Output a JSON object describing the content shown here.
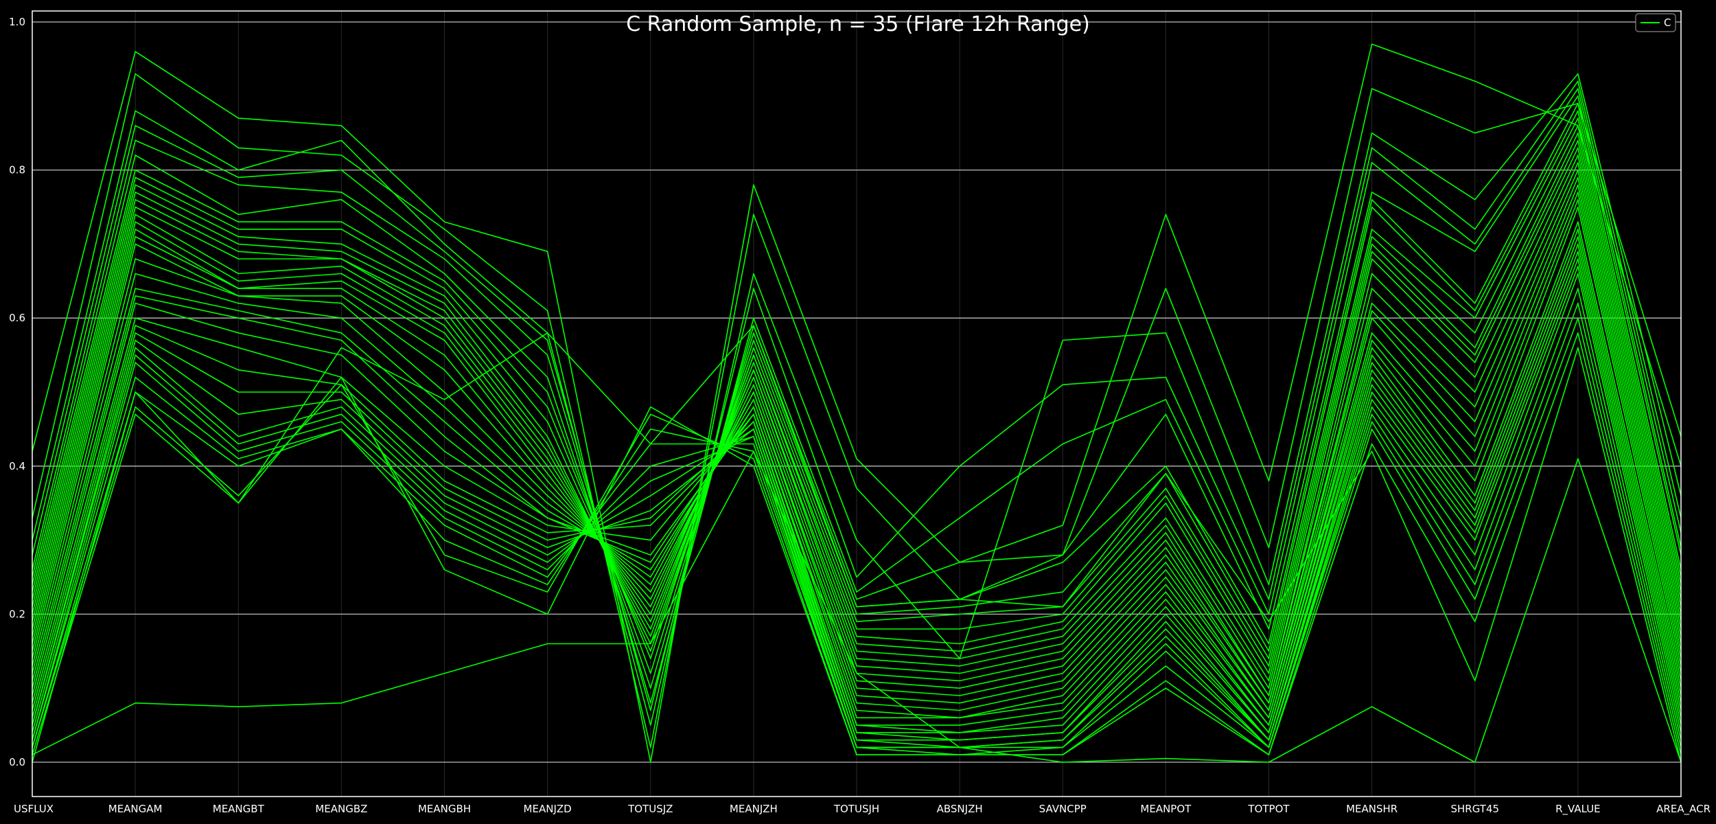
{
  "chart_data": {
    "type": "line",
    "subtype": "parallel-coordinates",
    "title": "C Random Sample, n = 35 (Flare 12h Range)",
    "xlabel": "",
    "ylabel": "",
    "categories": [
      "USFLUX",
      "MEANGAM",
      "MEANGBT",
      "MEANGBZ",
      "MEANGBH",
      "MEANJZD",
      "TOTUSJZ",
      "MEANJZH",
      "TOTUSJH",
      "ABSNJZH",
      "SAVNCPP",
      "MEANPOT",
      "TOTPOT",
      "MEANSHR",
      "SHRGT45",
      "R_VALUE",
      "AREA_ACR"
    ],
    "ylim": [
      0.0,
      1.0
    ],
    "yticks": [
      "0.0",
      "0.2",
      "0.4",
      "0.6",
      "0.8",
      "1.0"
    ],
    "grid": "horizontal",
    "legend_position": "top-right",
    "series_color": "#00ff00",
    "legend": [
      {
        "label": "C",
        "color": "#00ff00"
      }
    ],
    "series": [
      {
        "values": [
          0.01,
          0.08,
          0.075,
          0.08,
          0.12,
          0.16,
          0.16,
          0.42,
          0.12,
          0.02,
          0.0,
          0.005,
          0.0,
          0.075,
          0.0,
          0.41,
          0.0
        ]
      },
      {
        "values": [
          0.42,
          0.96,
          0.87,
          0.86,
          0.73,
          0.69,
          0.0,
          0.78,
          0.41,
          0.27,
          0.32,
          0.74,
          0.38,
          0.97,
          0.92,
          0.86,
          0.4
        ]
      },
      {
        "values": [
          0.33,
          0.93,
          0.83,
          0.82,
          0.72,
          0.61,
          0.02,
          0.74,
          0.37,
          0.22,
          0.28,
          0.64,
          0.29,
          0.91,
          0.85,
          0.89,
          0.44
        ]
      },
      {
        "values": [
          0.3,
          0.88,
          0.8,
          0.84,
          0.7,
          0.58,
          0.05,
          0.66,
          0.3,
          0.14,
          0.57,
          0.58,
          0.24,
          0.85,
          0.76,
          0.93,
          0.36
        ]
      },
      {
        "values": [
          0.28,
          0.86,
          0.79,
          0.8,
          0.69,
          0.57,
          0.07,
          0.64,
          0.25,
          0.4,
          0.51,
          0.52,
          0.22,
          0.83,
          0.72,
          0.92,
          0.33
        ]
      },
      {
        "values": [
          0.26,
          0.84,
          0.78,
          0.77,
          0.68,
          0.55,
          0.08,
          0.6,
          0.23,
          0.33,
          0.43,
          0.49,
          0.2,
          0.81,
          0.7,
          0.91,
          0.31
        ]
      },
      {
        "values": [
          0.25,
          0.82,
          0.74,
          0.76,
          0.66,
          0.52,
          0.1,
          0.59,
          0.22,
          0.27,
          0.28,
          0.47,
          0.18,
          0.77,
          0.69,
          0.9,
          0.29
        ]
      },
      {
        "values": [
          0.24,
          0.8,
          0.73,
          0.73,
          0.65,
          0.5,
          0.12,
          0.58,
          0.21,
          0.22,
          0.27,
          0.4,
          0.16,
          0.76,
          0.62,
          0.89,
          0.28
        ]
      },
      {
        "values": [
          0.23,
          0.79,
          0.72,
          0.72,
          0.64,
          0.48,
          0.14,
          0.57,
          0.2,
          0.21,
          0.23,
          0.39,
          0.15,
          0.75,
          0.61,
          0.88,
          0.26
        ]
      },
      {
        "values": [
          0.22,
          0.78,
          0.71,
          0.7,
          0.63,
          0.46,
          0.15,
          0.56,
          0.19,
          0.2,
          0.21,
          0.37,
          0.14,
          0.72,
          0.6,
          0.87,
          0.25
        ]
      },
      {
        "values": [
          0.21,
          0.77,
          0.7,
          0.69,
          0.62,
          0.44,
          0.16,
          0.55,
          0.18,
          0.18,
          0.2,
          0.36,
          0.13,
          0.71,
          0.58,
          0.86,
          0.24
        ]
      },
      {
        "values": [
          0.2,
          0.76,
          0.69,
          0.68,
          0.61,
          0.43,
          0.17,
          0.55,
          0.17,
          0.16,
          0.19,
          0.35,
          0.12,
          0.7,
          0.56,
          0.85,
          0.23
        ]
      },
      {
        "values": [
          0.19,
          0.75,
          0.68,
          0.68,
          0.6,
          0.42,
          0.18,
          0.54,
          0.16,
          0.15,
          0.18,
          0.33,
          0.11,
          0.69,
          0.55,
          0.84,
          0.22
        ]
      },
      {
        "values": [
          0.18,
          0.74,
          0.66,
          0.67,
          0.59,
          0.41,
          0.19,
          0.53,
          0.15,
          0.14,
          0.17,
          0.32,
          0.1,
          0.68,
          0.54,
          0.83,
          0.21
        ]
      },
      {
        "values": [
          0.17,
          0.73,
          0.65,
          0.66,
          0.58,
          0.4,
          0.2,
          0.53,
          0.14,
          0.13,
          0.16,
          0.31,
          0.09,
          0.66,
          0.52,
          0.82,
          0.2
        ]
      },
      {
        "values": [
          0.16,
          0.72,
          0.64,
          0.65,
          0.57,
          0.39,
          0.21,
          0.52,
          0.13,
          0.12,
          0.15,
          0.3,
          0.09,
          0.64,
          0.5,
          0.81,
          0.19
        ]
      },
      {
        "values": [
          0.15,
          0.71,
          0.64,
          0.64,
          0.55,
          0.38,
          0.22,
          0.51,
          0.12,
          0.11,
          0.14,
          0.29,
          0.08,
          0.62,
          0.48,
          0.8,
          0.18
        ]
      },
      {
        "values": [
          0.14,
          0.7,
          0.63,
          0.63,
          0.53,
          0.37,
          0.23,
          0.5,
          0.11,
          0.1,
          0.13,
          0.28,
          0.08,
          0.61,
          0.46,
          0.79,
          0.17
        ]
      },
      {
        "values": [
          0.13,
          0.68,
          0.63,
          0.62,
          0.5,
          0.36,
          0.24,
          0.5,
          0.1,
          0.09,
          0.12,
          0.27,
          0.07,
          0.6,
          0.44,
          0.78,
          0.16
        ]
      },
      {
        "values": [
          0.12,
          0.66,
          0.62,
          0.6,
          0.48,
          0.35,
          0.25,
          0.49,
          0.09,
          0.08,
          0.11,
          0.26,
          0.07,
          0.58,
          0.42,
          0.77,
          0.15
        ]
      },
      {
        "values": [
          0.11,
          0.64,
          0.61,
          0.58,
          0.46,
          0.34,
          0.26,
          0.48,
          0.08,
          0.07,
          0.1,
          0.25,
          0.06,
          0.57,
          0.4,
          0.76,
          0.14
        ]
      },
      {
        "values": [
          0.1,
          0.63,
          0.6,
          0.57,
          0.44,
          0.33,
          0.27,
          0.48,
          0.07,
          0.06,
          0.09,
          0.24,
          0.06,
          0.56,
          0.38,
          0.75,
          0.13
        ]
      },
      {
        "values": [
          0.09,
          0.62,
          0.58,
          0.55,
          0.42,
          0.33,
          0.28,
          0.47,
          0.06,
          0.06,
          0.08,
          0.23,
          0.05,
          0.55,
          0.36,
          0.73,
          0.12
        ]
      },
      {
        "values": [
          0.08,
          0.6,
          0.56,
          0.52,
          0.4,
          0.32,
          0.3,
          0.47,
          0.05,
          0.05,
          0.07,
          0.22,
          0.05,
          0.54,
          0.35,
          0.72,
          0.11
        ]
      },
      {
        "values": [
          0.07,
          0.59,
          0.53,
          0.51,
          0.38,
          0.31,
          0.32,
          0.46,
          0.05,
          0.04,
          0.06,
          0.21,
          0.04,
          0.53,
          0.34,
          0.71,
          0.1
        ]
      },
      {
        "values": [
          0.06,
          0.58,
          0.5,
          0.5,
          0.37,
          0.3,
          0.33,
          0.46,
          0.04,
          0.04,
          0.05,
          0.2,
          0.04,
          0.52,
          0.33,
          0.7,
          0.09
        ]
      },
      {
        "values": [
          0.05,
          0.57,
          0.47,
          0.49,
          0.36,
          0.29,
          0.34,
          0.45,
          0.04,
          0.03,
          0.04,
          0.19,
          0.03,
          0.51,
          0.32,
          0.69,
          0.08
        ]
      },
      {
        "values": [
          0.05,
          0.56,
          0.44,
          0.48,
          0.35,
          0.28,
          0.36,
          0.45,
          0.03,
          0.03,
          0.04,
          0.18,
          0.03,
          0.5,
          0.31,
          0.68,
          0.07
        ]
      },
      {
        "values": [
          0.04,
          0.55,
          0.43,
          0.47,
          0.34,
          0.27,
          0.38,
          0.44,
          0.03,
          0.02,
          0.03,
          0.17,
          0.03,
          0.49,
          0.3,
          0.67,
          0.06
        ]
      },
      {
        "values": [
          0.03,
          0.54,
          0.42,
          0.46,
          0.33,
          0.26,
          0.4,
          0.44,
          0.02,
          0.02,
          0.03,
          0.16,
          0.02,
          0.48,
          0.28,
          0.66,
          0.05
        ]
      },
      {
        "values": [
          0.03,
          0.52,
          0.41,
          0.45,
          0.32,
          0.25,
          0.43,
          0.43,
          0.02,
          0.02,
          0.02,
          0.15,
          0.02,
          0.47,
          0.26,
          0.64,
          0.04
        ]
      },
      {
        "values": [
          0.02,
          0.5,
          0.4,
          0.45,
          0.3,
          0.24,
          0.45,
          0.42,
          0.02,
          0.01,
          0.02,
          0.13,
          0.02,
          0.46,
          0.24,
          0.62,
          0.03
        ]
      },
      {
        "values": [
          0.02,
          0.48,
          0.36,
          0.51,
          0.28,
          0.23,
          0.47,
          0.41,
          0.01,
          0.01,
          0.01,
          0.11,
          0.01,
          0.45,
          0.22,
          0.6,
          0.02
        ]
      },
      {
        "values": [
          0.01,
          0.47,
          0.35,
          0.52,
          0.26,
          0.2,
          0.48,
          0.4,
          0.01,
          0.01,
          0.01,
          0.1,
          0.01,
          0.43,
          0.19,
          0.58,
          0.01
        ]
      },
      {
        "values": [
          0.0,
          0.5,
          0.35,
          0.56,
          0.49,
          0.58,
          0.43,
          0.59,
          0.21,
          0.22,
          0.21,
          0.39,
          0.19,
          0.42,
          0.11,
          0.56,
          0.0
        ]
      }
    ]
  }
}
